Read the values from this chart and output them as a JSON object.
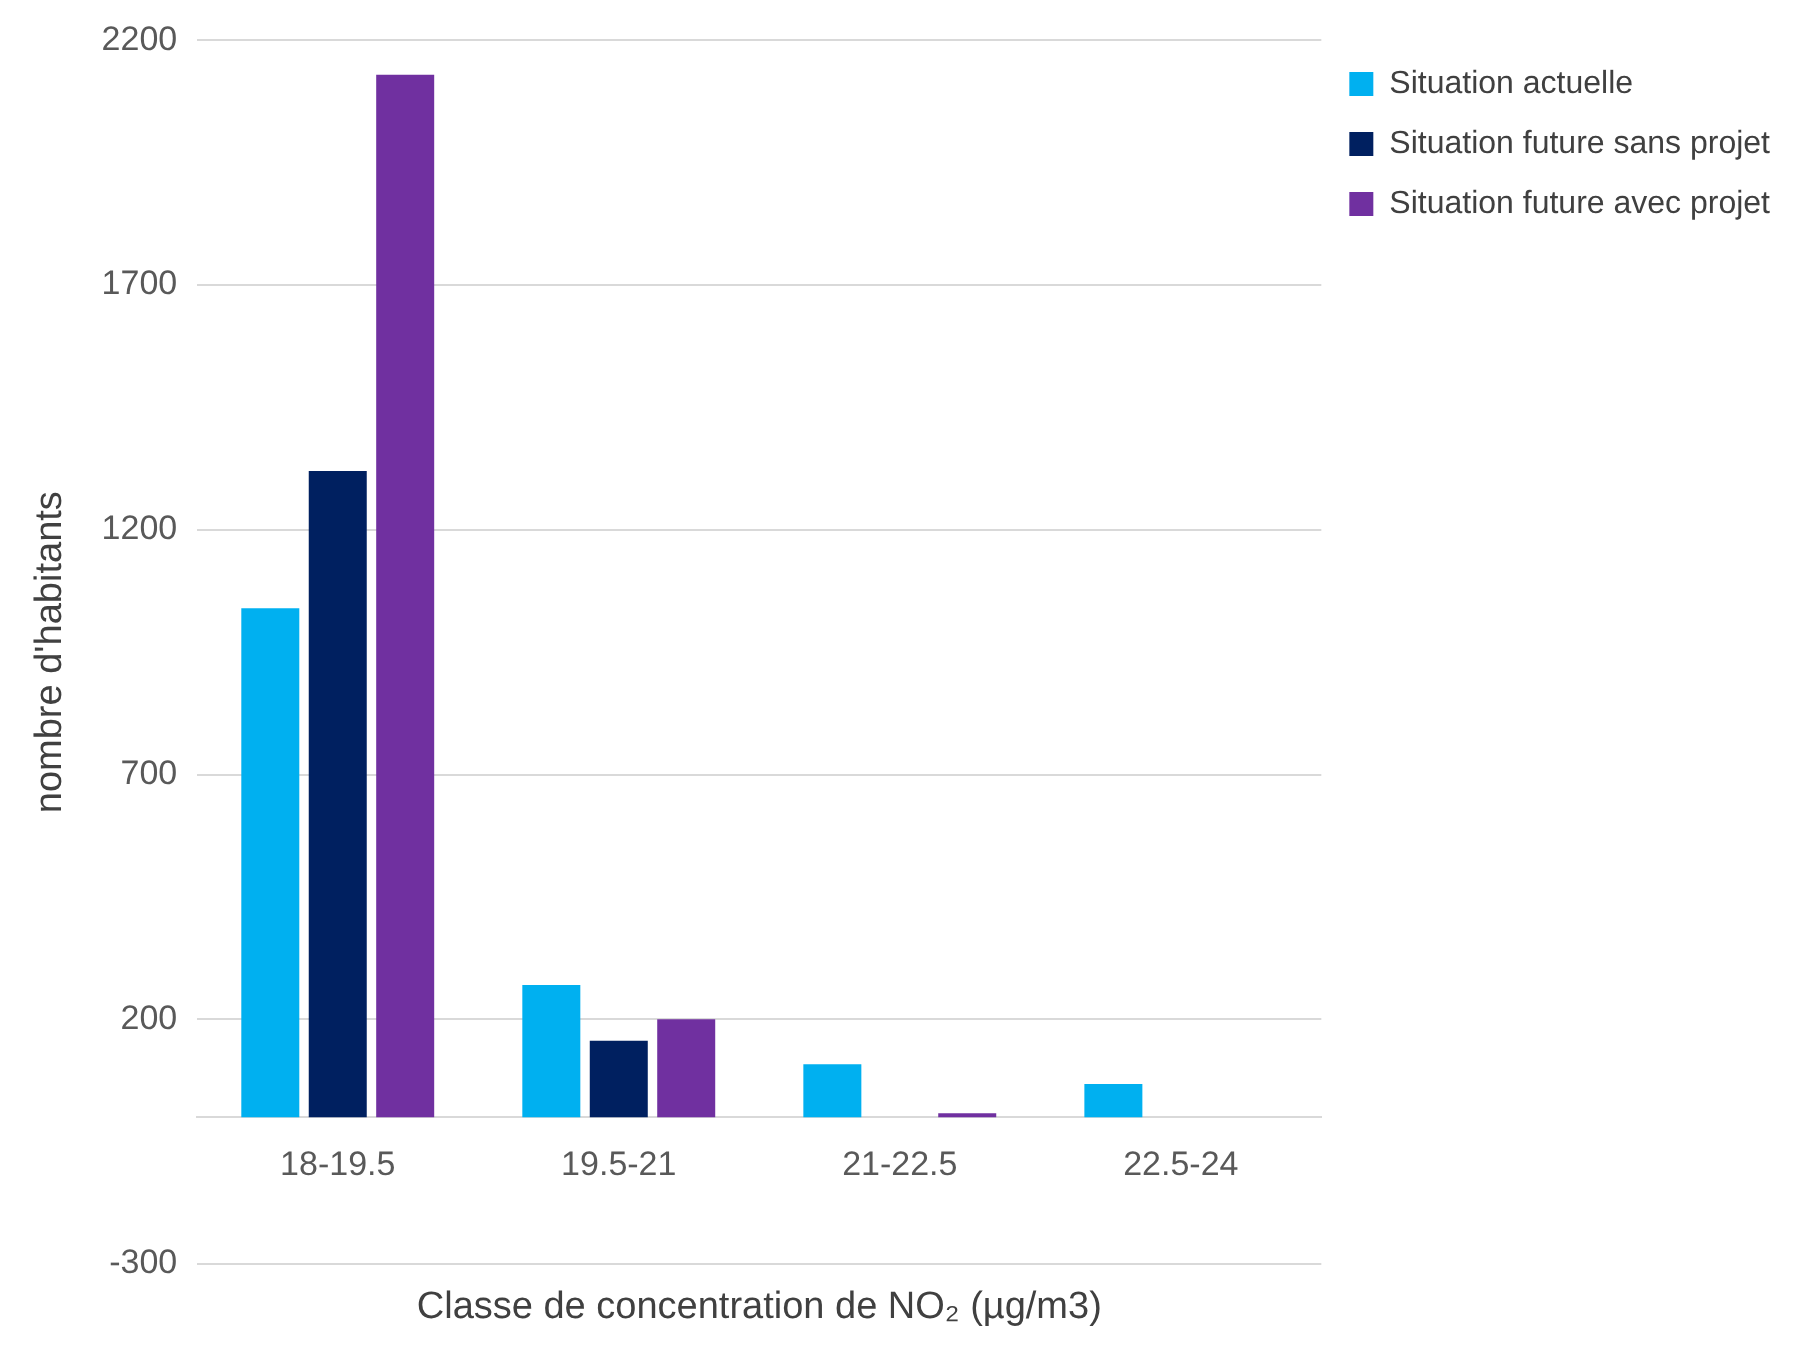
{
  "chart_data": {
    "type": "bar",
    "xlabel": "Classe de concentration de NO₂ (µg/m3)",
    "ylabel": "nombre d'habitants",
    "categories": [
      "18-19.5",
      "19.5-21",
      "21-22.5",
      "22.5-24"
    ],
    "series": [
      {
        "name": "Situation actuelle",
        "color": "#00b0f0",
        "values": [
          1040,
          270,
          108,
          68
        ]
      },
      {
        "name": "Situation future sans projet",
        "color": "#002060",
        "values": [
          1320,
          156,
          0,
          0
        ]
      },
      {
        "name": "Situation future avec projet",
        "color": "#7030a0",
        "values": [
          2130,
          200,
          8,
          0
        ]
      }
    ],
    "ylim": [
      -300,
      2200
    ],
    "yticks": [
      -300,
      200,
      700,
      1200,
      1700,
      2200
    ],
    "grid": "y",
    "legend": "right"
  }
}
